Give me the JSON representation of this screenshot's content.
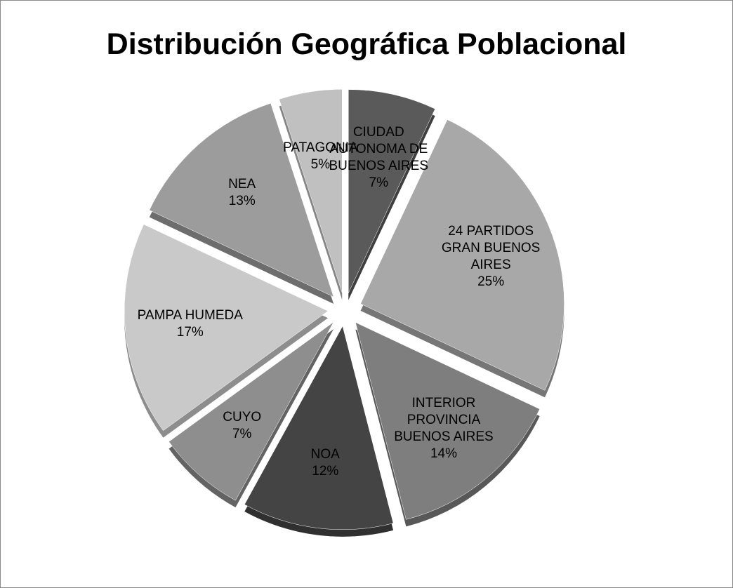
{
  "chart_data": {
    "type": "pie",
    "title": "Distribución Geográfica Poblacional",
    "categories": [
      "CIUDAD AUTONOMA DE BUENOS AIRES",
      "24 PARTIDOS GRAN BUENOS AIRES",
      "INTERIOR PROVINCIA BUENOS AIRES",
      "NOA",
      "CUYO",
      "PAMPA HUMEDA",
      "NEA",
      "PATAGONIA"
    ],
    "values": [
      7,
      25,
      14,
      12,
      7,
      17,
      13,
      5
    ],
    "value_labels": [
      "7%",
      "25%",
      "14%",
      "12%",
      "7%",
      "17%",
      "13%",
      "5%"
    ],
    "colors": [
      "#5a5a5a",
      "#a8a8a8",
      "#7e7e7e",
      "#444444",
      "#8e8e8e",
      "#c9c9c9",
      "#9c9c9c",
      "#c0c0c0"
    ]
  }
}
